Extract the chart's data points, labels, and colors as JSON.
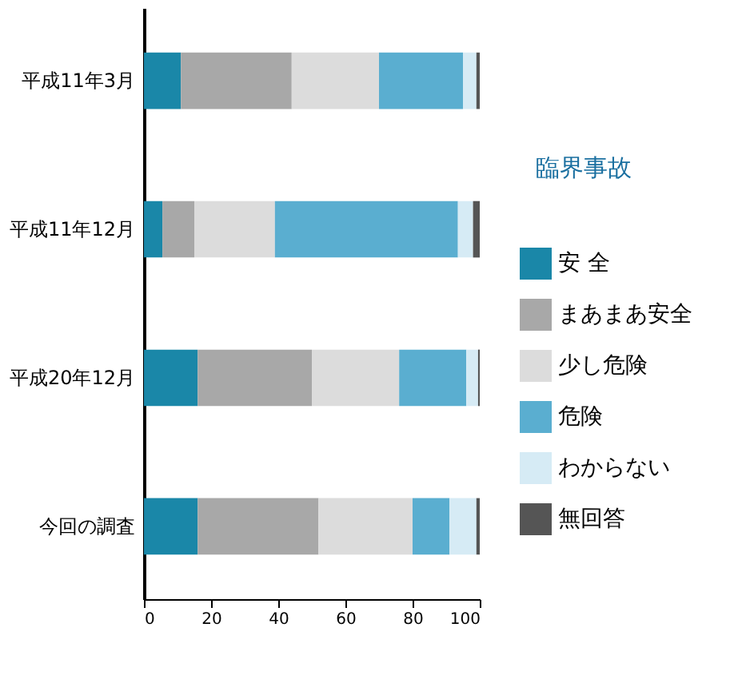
{
  "chart_data": {
    "type": "bar",
    "orientation": "horizontal",
    "stacked": true,
    "categories": [
      "平成11年3月",
      "平成11年12月",
      "平成20年12月",
      "今回の調査"
    ],
    "series": [
      {
        "name": "安 全",
        "color": "#1a87a8",
        "values": [
          11,
          5.5,
          16,
          16
        ]
      },
      {
        "name": "まあまあ安全",
        "color": "#a8a8a8",
        "values": [
          33,
          9.5,
          34,
          36
        ]
      },
      {
        "name": "少し危険",
        "color": "#dcdcdc",
        "values": [
          26,
          24,
          26,
          28
        ]
      },
      {
        "name": "危険",
        "color": "#5aaed0",
        "values": [
          25,
          54.5,
          20,
          11
        ]
      },
      {
        "name": "わからない",
        "color": "#d6ebf5",
        "values": [
          4,
          4.5,
          3.5,
          8
        ]
      },
      {
        "name": "無回答",
        "color": "#555555",
        "values": [
          1,
          2,
          0.5,
          1
        ]
      }
    ],
    "xlim": [
      0,
      100
    ],
    "xticks": [
      0,
      20,
      40,
      60,
      80,
      100
    ],
    "grid": false,
    "legend": "right",
    "annotations": [
      "臨界事故"
    ]
  }
}
